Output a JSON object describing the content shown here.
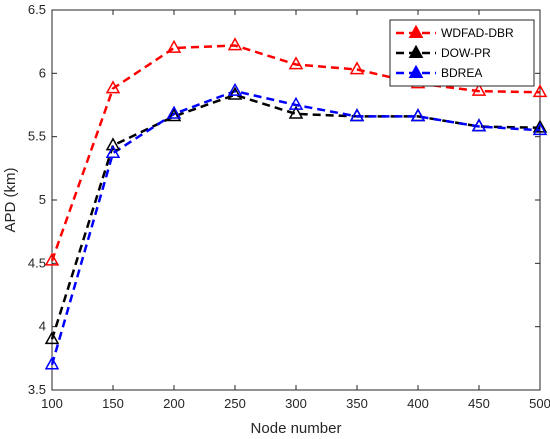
{
  "chart_data": {
    "type": "line",
    "xlabel": "Node number",
    "ylabel": "APD (km)",
    "xlim": [
      100,
      500
    ],
    "ylim": [
      3.5,
      6.5
    ],
    "xticks": [
      100,
      150,
      200,
      250,
      300,
      350,
      400,
      450,
      500
    ],
    "yticks": [
      3.5,
      4,
      4.5,
      5,
      5.5,
      6,
      6.5
    ],
    "ytick_labels": [
      "3.5",
      "4",
      "4.5",
      "5",
      "5.5",
      "6",
      "6.5"
    ],
    "grid": false,
    "legend_position": "top-right",
    "x": [
      100,
      150,
      200,
      250,
      300,
      350,
      400,
      450,
      500
    ],
    "series": [
      {
        "name": "WDFAD-DBR",
        "color": "#ff0000",
        "marker": "triangle",
        "values": [
          4.52,
          5.88,
          6.2,
          6.22,
          6.07,
          6.03,
          5.92,
          5.86,
          5.85
        ]
      },
      {
        "name": "DOW-PR",
        "color": "#000000",
        "marker": "triangle",
        "values": [
          3.9,
          5.43,
          5.66,
          5.83,
          5.68,
          5.66,
          5.66,
          5.58,
          5.57
        ]
      },
      {
        "name": "BDREA",
        "color": "#0000ff",
        "marker": "triangle",
        "values": [
          3.7,
          5.37,
          5.68,
          5.86,
          5.75,
          5.66,
          5.66,
          5.58,
          5.55
        ]
      }
    ]
  }
}
